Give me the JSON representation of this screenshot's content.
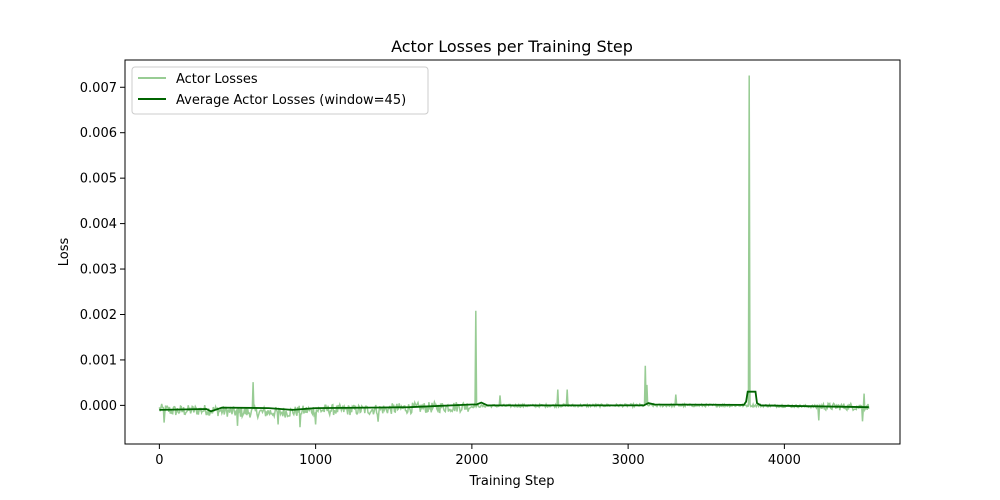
{
  "chart_data": {
    "type": "line",
    "title": "Actor Losses per Training Step",
    "xlabel": "Training Step",
    "ylabel": "Loss",
    "xlim": [
      -220,
      4740
    ],
    "ylim": [
      -0.00085,
      0.0076
    ],
    "xticks": [
      0,
      1000,
      2000,
      3000,
      4000
    ],
    "xtick_labels": [
      "0",
      "1000",
      "2000",
      "3000",
      "4000"
    ],
    "yticks": [
      0.0,
      0.001,
      0.002,
      0.003,
      0.004,
      0.005,
      0.006,
      0.007
    ],
    "ytick_labels": [
      "0.000",
      "0.001",
      "0.002",
      "0.003",
      "0.004",
      "0.005",
      "0.006",
      "0.007"
    ],
    "grid": false,
    "legend_position": "top-left",
    "n_steps": 4540,
    "series": [
      {
        "name": "Actor Losses",
        "color": "#98cc94",
        "baseline": [
          [
            0,
            -8e-05
          ],
          [
            100,
            -0.00012
          ],
          [
            300,
            -0.0001
          ],
          [
            500,
            -0.00015
          ],
          [
            800,
            -0.00015
          ],
          [
            1000,
            -0.0001
          ],
          [
            1300,
            -0.0001
          ],
          [
            1600,
            -6e-05
          ],
          [
            1900,
            -3e-05
          ],
          [
            2100,
            -1e-05
          ],
          [
            3000,
            0.0
          ],
          [
            3800,
            0.0
          ],
          [
            4300,
            -3e-05
          ],
          [
            4540,
            -3e-05
          ]
        ],
        "spikes": [
          [
            600,
            0.00051
          ],
          [
            2025,
            0.00208
          ],
          [
            2180,
            0.00022
          ],
          [
            2550,
            0.00035
          ],
          [
            2610,
            0.00035
          ],
          [
            3110,
            0.00087
          ],
          [
            3120,
            0.00045
          ],
          [
            3305,
            0.00024
          ],
          [
            3775,
            0.00726
          ],
          [
            4510,
            0.00026
          ]
        ],
        "dips": [
          [
            30,
            -0.00038
          ],
          [
            500,
            -0.00045
          ],
          [
            760,
            -0.00042
          ],
          [
            900,
            -0.00048
          ],
          [
            1000,
            -0.00042
          ],
          [
            1400,
            -0.00036
          ],
          [
            4220,
            -0.00033
          ],
          [
            4500,
            -0.00035
          ]
        ]
      },
      {
        "name": "Average Actor Losses (window=45)",
        "color": "#006400",
        "points": [
          [
            0,
            -0.0001
          ],
          [
            300,
            -8e-05
          ],
          [
            330,
            -0.00013
          ],
          [
            400,
            -5e-05
          ],
          [
            700,
            -6e-05
          ],
          [
            850,
            -0.0001
          ],
          [
            1000,
            -6e-05
          ],
          [
            1600,
            -4e-05
          ],
          [
            2000,
            2e-05
          ],
          [
            2030,
            2e-05
          ],
          [
            2060,
            6e-05
          ],
          [
            2100,
            0.0
          ],
          [
            3100,
            0.0
          ],
          [
            3130,
            5e-05
          ],
          [
            3170,
            2e-05
          ],
          [
            3740,
            1e-05
          ],
          [
            3755,
            8e-05
          ],
          [
            3765,
            0.0003
          ],
          [
            3815,
            0.0003
          ],
          [
            3825,
            5e-05
          ],
          [
            3850,
            0.0
          ],
          [
            4540,
            -4e-05
          ]
        ]
      }
    ]
  }
}
